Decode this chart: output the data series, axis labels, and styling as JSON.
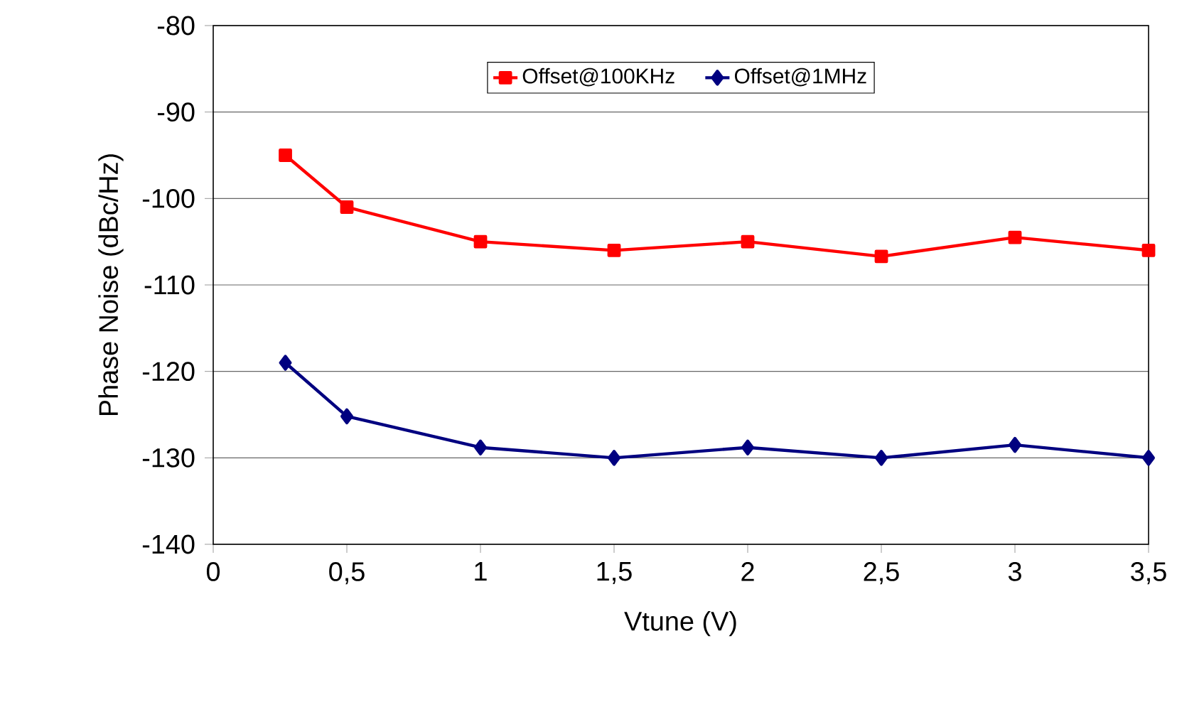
{
  "chart_data": {
    "type": "line",
    "xlabel": "Vtune (V)",
    "ylabel": "Phase Noise (dBc/Hz)",
    "xlim": [
      0,
      3.5
    ],
    "xticks": [
      0,
      {
        "value": 0.5,
        "label": "0,5"
      },
      1,
      {
        "value": 1.5,
        "label": "1,5"
      },
      2,
      {
        "value": 2.5,
        "label": "2,5"
      },
      3,
      {
        "value": 3.5,
        "label": "3,5"
      }
    ],
    "ylim": [
      -140,
      -80
    ],
    "yticks": [
      -140,
      -130,
      -120,
      -110,
      -100,
      -90,
      -80
    ],
    "grid": "y",
    "legend": "top",
    "line_style": "solid",
    "x": [
      0.27,
      0.5,
      1,
      1.5,
      2,
      2.5,
      3,
      3.5
    ],
    "series": [
      {
        "name": "Offset@100KHz",
        "color": "#ff0000",
        "marker": "square",
        "values": [
          -95,
          -101,
          -105,
          -106,
          -105,
          -106.7,
          -104.5,
          -106
        ]
      },
      {
        "name": "Offset@1MHz",
        "color": "#000080",
        "marker": "diamond",
        "values": [
          -119,
          -125.2,
          -128.8,
          -130,
          -128.8,
          -130,
          -128.5,
          -130
        ]
      }
    ]
  }
}
